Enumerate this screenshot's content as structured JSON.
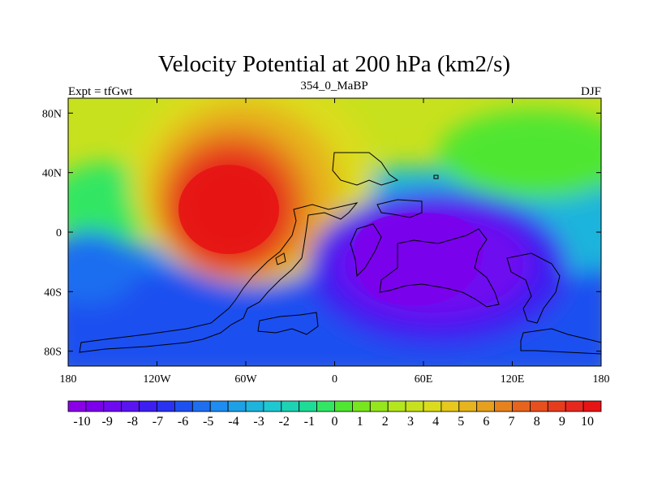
{
  "header": {
    "title": "Velocity Potential at 200 hPa (km2/s)",
    "left": "Expt = tfGwt",
    "center": "354_0_MaBP",
    "right": "DJF"
  },
  "map": {
    "lat_ticks": [
      "80N",
      "40N",
      "0",
      "40S",
      "80S"
    ],
    "lat_values": [
      80,
      40,
      0,
      -40,
      -80
    ],
    "lon_ticks": [
      "180",
      "120W",
      "60W",
      "0",
      "60E",
      "120E",
      "180"
    ],
    "lon_values": [
      -180,
      -120,
      -60,
      0,
      60,
      120,
      180
    ],
    "lon_range": [
      -180,
      180
    ],
    "lat_range": [
      -90,
      90
    ]
  },
  "colorbar": {
    "labels": [
      "-10",
      "-9",
      "-8",
      "-7",
      "-6",
      "-5",
      "-4",
      "-3",
      "-2",
      "-1",
      "0",
      "1",
      "2",
      "3",
      "4",
      "5",
      "6",
      "7",
      "8",
      "9",
      "10"
    ],
    "colors": [
      "#8a00e6",
      "#7c00eb",
      "#6e0af0",
      "#5a14f0",
      "#3c1ef0",
      "#2832f0",
      "#1e50f0",
      "#1e6ef0",
      "#1e8cf0",
      "#1ea0e6",
      "#1eb4dc",
      "#1ec8d2",
      "#1ed2b4",
      "#1edc96",
      "#32e664",
      "#50e632",
      "#78e61e",
      "#96e61e",
      "#b4e61e",
      "#c8e11e",
      "#dcdc1e",
      "#e6c81e",
      "#e6b41e",
      "#e6a01e",
      "#e6821e",
      "#e6641e",
      "#e6501e",
      "#e63c1e",
      "#e6281e",
      "#e61414"
    ]
  }
}
